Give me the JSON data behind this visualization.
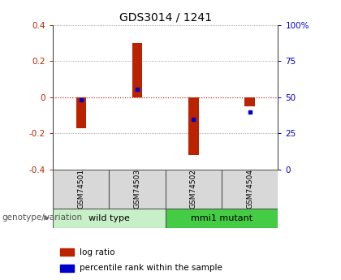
{
  "title": "GDS3014 / 1241",
  "samples": [
    "GSM74501",
    "GSM74503",
    "GSM74502",
    "GSM74504"
  ],
  "log_ratio_values": [
    -0.17,
    0.3,
    -0.32,
    -0.05
  ],
  "log_ratio_color": "#bb2200",
  "percentile_values": [
    0.48,
    0.555,
    0.345,
    0.4
  ],
  "percentile_color": "#0000cc",
  "ylim_left": [
    -0.4,
    0.4
  ],
  "yticks_left": [
    -0.4,
    -0.2,
    0.0,
    0.2,
    0.4
  ],
  "ytick_labels_left": [
    "-0.4",
    "-0.2",
    "0",
    "0.2",
    "0.4"
  ],
  "ytick_labels_right": [
    "0",
    "25",
    "50",
    "75",
    "100%"
  ],
  "groups": [
    {
      "label": "wild type",
      "indices": [
        0,
        1
      ],
      "color": "#c8f0c8"
    },
    {
      "label": "mmi1 mutant",
      "indices": [
        2,
        3
      ],
      "color": "#44cc44"
    }
  ],
  "group_label": "genotype/variation",
  "zero_line_color": "#cc0000",
  "grid_color": "#888888",
  "bar_width": 0.18,
  "legend_items": [
    {
      "label": "log ratio",
      "color": "#bb2200"
    },
    {
      "label": "percentile rank within the sample",
      "color": "#0000cc"
    }
  ],
  "fig_bg": "#ffffff",
  "plot_bg": "#ffffff"
}
